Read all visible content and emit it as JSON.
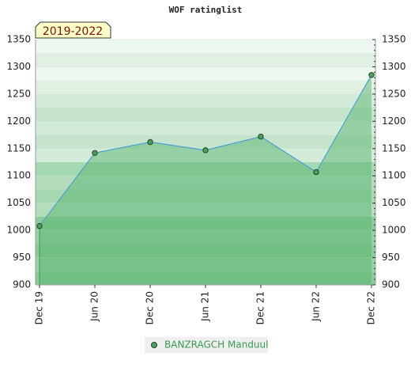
{
  "chart_data": {
    "type": "area",
    "title": "WOF ratinglist",
    "annotation": "2019-2022",
    "categories": [
      "Dec 19",
      "Jun 20",
      "Dec 20",
      "Jun 21",
      "Dec 21",
      "Jun 22",
      "Dec 22"
    ],
    "series": [
      {
        "name": "BANZRAGCH Manduul",
        "color": "#4f9fd4",
        "values": [
          1008,
          1142,
          1162,
          1147,
          1172,
          1107,
          1285
        ]
      }
    ],
    "ylim": [
      900,
      1350
    ],
    "yticks": [
      900,
      950,
      1000,
      1050,
      1100,
      1150,
      1200,
      1250,
      1300,
      1350
    ],
    "grid": true
  }
}
